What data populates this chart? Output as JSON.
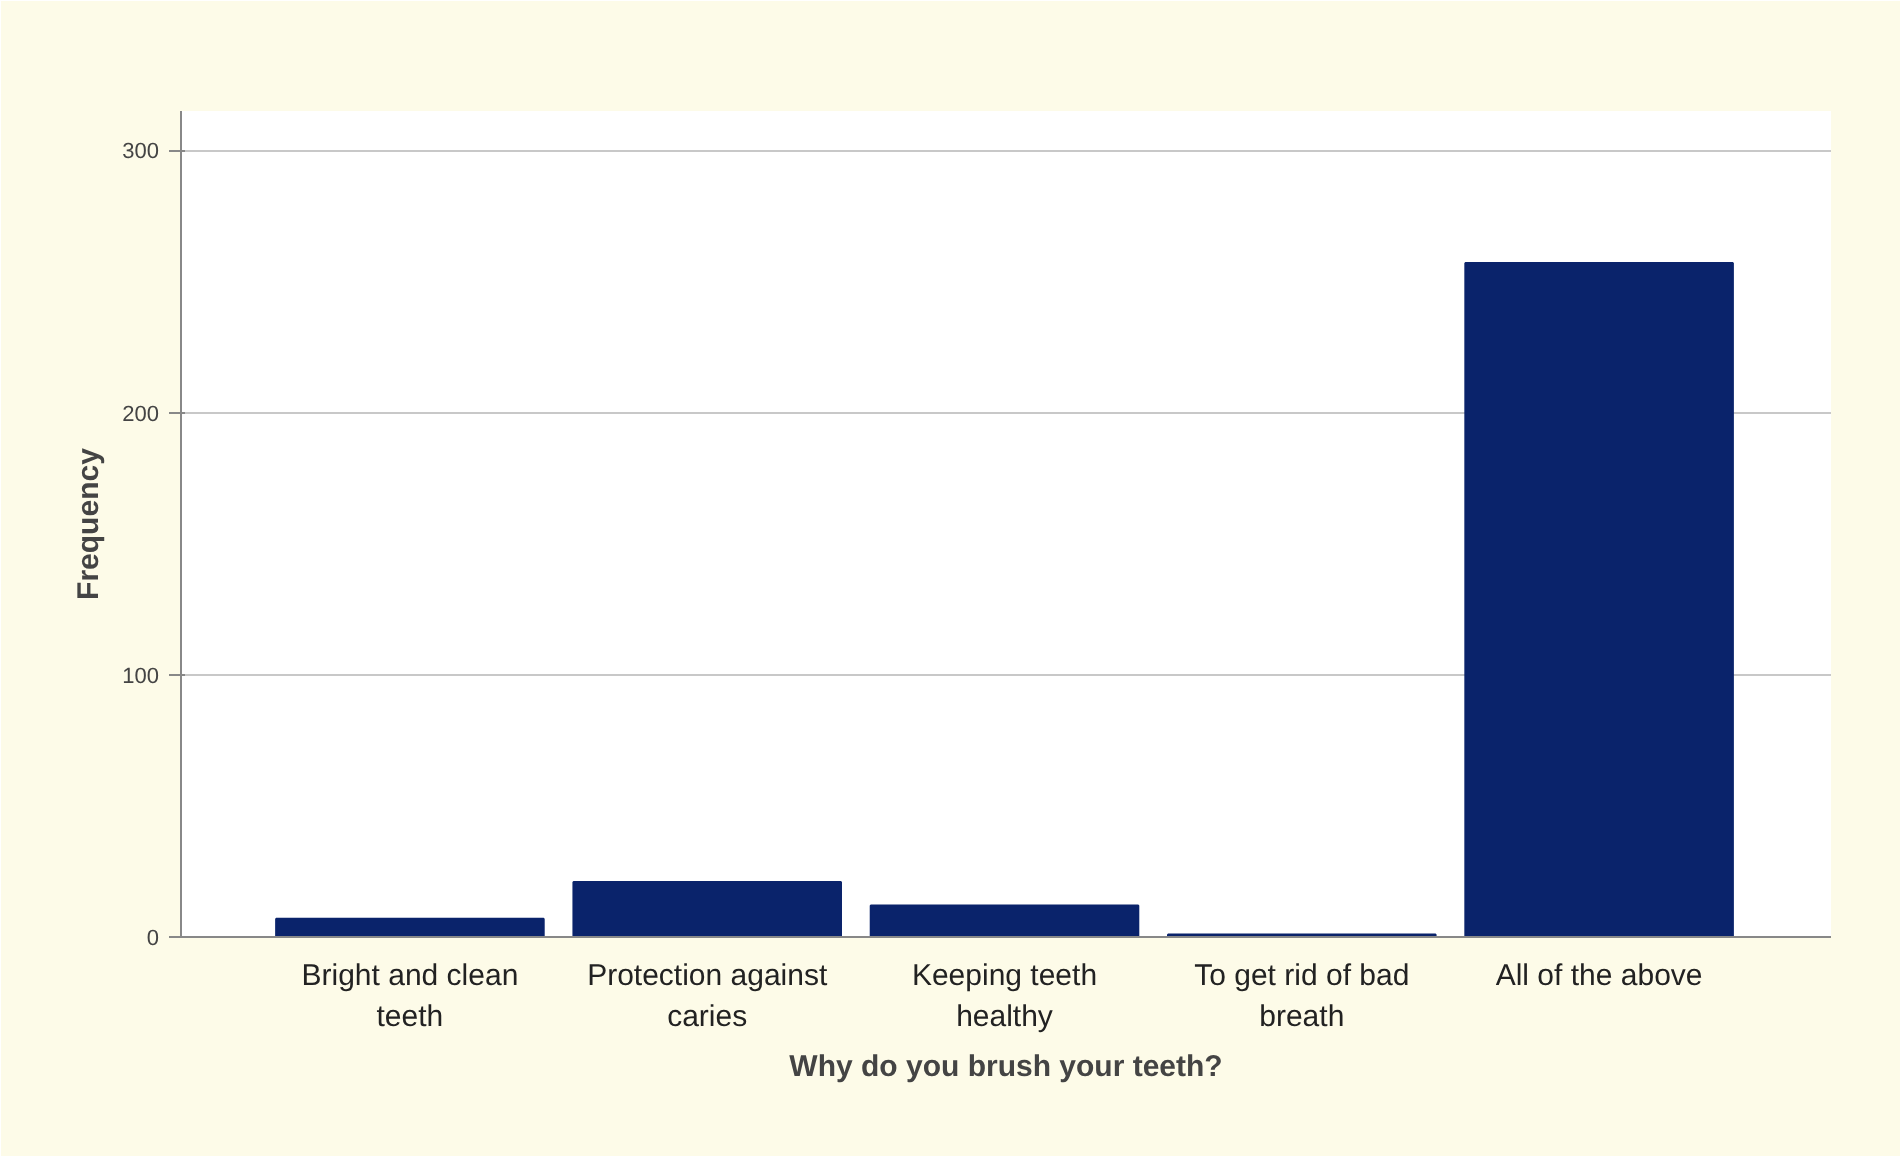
{
  "chart_data": {
    "type": "bar",
    "xlabel": "Why do you brush your teeth?",
    "ylabel": "Frequency",
    "categories": [
      "Bright and clean teeth",
      "Protection against caries",
      "Keeping teeth healthy",
      "To get rid of bad breath",
      "All of the above"
    ],
    "values": [
      7,
      21,
      12,
      1,
      257
    ],
    "color": "#0a236b",
    "ylim": [
      0,
      315
    ],
    "yticks": [
      0,
      100,
      200,
      300
    ],
    "grid": "y"
  }
}
